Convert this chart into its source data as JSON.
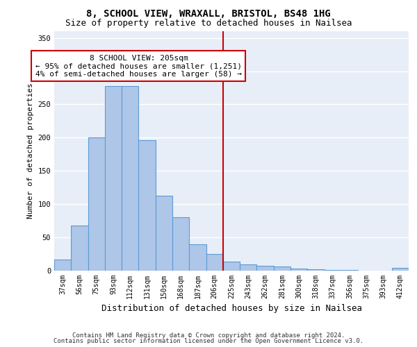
{
  "title_line1": "8, SCHOOL VIEW, WRAXALL, BRISTOL, BS48 1HG",
  "title_line2": "Size of property relative to detached houses in Nailsea",
  "xlabel": "Distribution of detached houses by size in Nailsea",
  "ylabel": "Number of detached properties",
  "categories": [
    "37sqm",
    "56sqm",
    "75sqm",
    "93sqm",
    "112sqm",
    "131sqm",
    "150sqm",
    "168sqm",
    "187sqm",
    "206sqm",
    "225sqm",
    "243sqm",
    "262sqm",
    "281sqm",
    "300sqm",
    "318sqm",
    "337sqm",
    "356sqm",
    "375sqm",
    "393sqm",
    "412sqm"
  ],
  "values": [
    17,
    68,
    200,
    278,
    278,
    196,
    113,
    80,
    40,
    25,
    14,
    9,
    7,
    6,
    3,
    2,
    1,
    1,
    0,
    0,
    4
  ],
  "bar_color": "#aec6e8",
  "bar_edge_color": "#5b9bd5",
  "vline_x": 9.5,
  "vline_color": "#cc0000",
  "annotation_text": "8 SCHOOL VIEW: 205sqm\n← 95% of detached houses are smaller (1,251)\n4% of semi-detached houses are larger (58) →",
  "box_edge_color": "#cc0000",
  "ylim": [
    0,
    360
  ],
  "yticks": [
    0,
    50,
    100,
    150,
    200,
    250,
    300,
    350
  ],
  "footer_line1": "Contains HM Land Registry data © Crown copyright and database right 2024.",
  "footer_line2": "Contains public sector information licensed under the Open Government Licence v3.0.",
  "background_color": "#e8eef8",
  "grid_color": "#ffffff",
  "title_fontsize": 10,
  "subtitle_fontsize": 9,
  "ylabel_fontsize": 8,
  "xlabel_fontsize": 9,
  "tick_fontsize": 7,
  "annotation_fontsize": 8,
  "footer_fontsize": 6.5
}
